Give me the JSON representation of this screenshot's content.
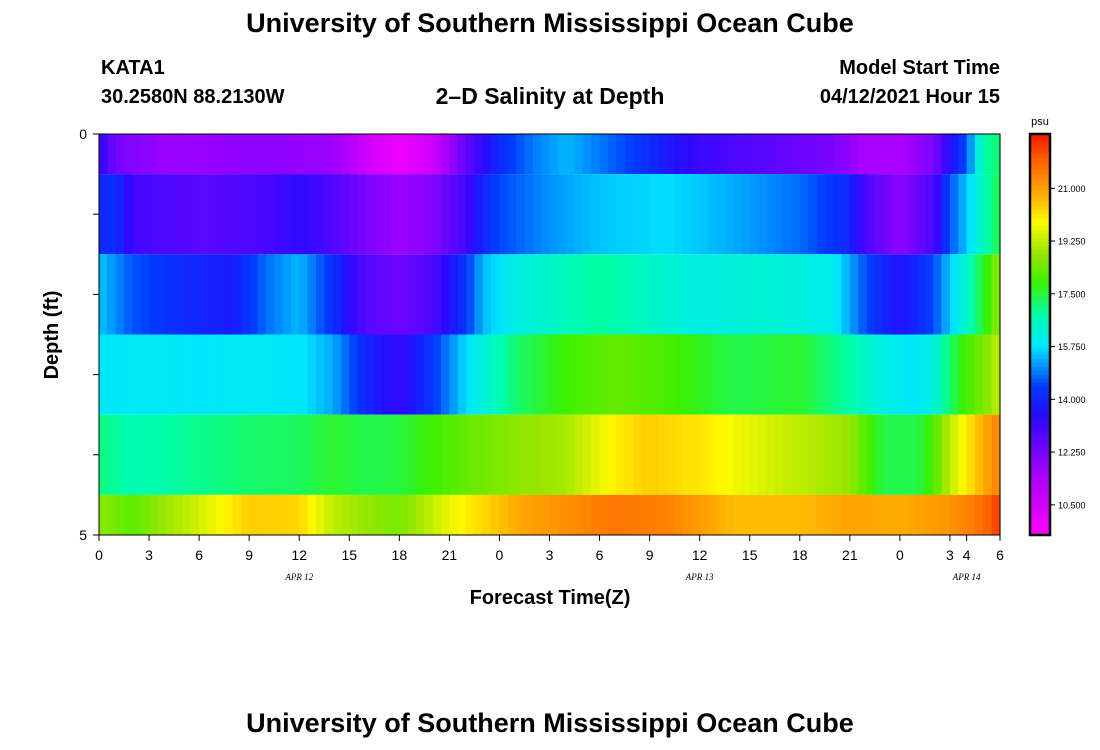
{
  "header": {
    "title": "University of Southern Mississippi Ocean Cube",
    "station": "KATA1",
    "coords": "30.2580N  88.2130W",
    "plot_title": "2–D Salinity at Depth",
    "model_label": "Model Start Time",
    "model_time": "04/12/2021 Hour 15"
  },
  "footer": {
    "title": "University of Southern Mississippi Ocean Cube"
  },
  "chart_data": {
    "type": "heatmap",
    "title": "2–D Salinity at Depth",
    "xlabel": "Forecast Time(Z)",
    "ylabel": "Depth (ft)",
    "x_tick_labels": [
      "0",
      "3",
      "6",
      "9",
      "12",
      "15",
      "18",
      "21",
      "0",
      "3",
      "6",
      "9",
      "12",
      "15",
      "18",
      "21",
      "0",
      "3",
      "4",
      "6"
    ],
    "x_tick_hours": [
      0,
      3,
      6,
      9,
      12,
      15,
      18,
      21,
      24,
      27,
      30,
      33,
      36,
      39,
      42,
      45,
      48,
      51,
      52,
      54
    ],
    "xlim": [
      0,
      54
    ],
    "date_labels": [
      {
        "text": "APR  12",
        "hour": 12
      },
      {
        "text": "APR  13",
        "hour": 36
      },
      {
        "text": "APR  14",
        "hour": 52
      }
    ],
    "y_tick_labels": [
      "0",
      "5"
    ],
    "ylim": [
      0,
      5
    ],
    "colorbar": {
      "unit": "psu",
      "ticks": [
        "21.000",
        "19.250",
        "17.500",
        "15.750",
        "14.000",
        "12.250",
        "10.500"
      ],
      "tick_values": [
        21.0,
        19.25,
        17.5,
        15.75,
        14.0,
        12.25,
        10.5
      ],
      "range": [
        9.5,
        22.8
      ]
    },
    "depth_bands": [
      {
        "from": 0,
        "to": 0.5,
        "keys": [
          [
            0,
            13.5
          ],
          [
            1,
            12.3
          ],
          [
            4,
            11.7
          ],
          [
            10,
            11.9
          ],
          [
            14,
            11.7
          ],
          [
            16,
            10.6
          ],
          [
            18,
            9.9
          ],
          [
            20,
            10.6
          ],
          [
            22,
            12.6
          ],
          [
            24,
            14.1
          ],
          [
            26,
            14.9
          ],
          [
            28,
            15.4
          ],
          [
            30,
            14.9
          ],
          [
            32,
            14.4
          ],
          [
            36,
            13.2
          ],
          [
            40,
            12.7
          ],
          [
            44,
            12.2
          ],
          [
            46,
            11.4
          ],
          [
            48,
            11.4
          ],
          [
            50,
            12.2
          ],
          [
            51,
            13.5
          ],
          [
            52,
            14.6
          ],
          [
            53,
            16.8
          ],
          [
            54,
            17.2
          ]
        ]
      },
      {
        "from": 0.5,
        "to": 1.5,
        "keys": [
          [
            0,
            14.0
          ],
          [
            1,
            14.2
          ],
          [
            2,
            13.1
          ],
          [
            6,
            12.7
          ],
          [
            10,
            13.0
          ],
          [
            12,
            13.4
          ],
          [
            14,
            12.9
          ],
          [
            16,
            12.2
          ],
          [
            18,
            11.7
          ],
          [
            20,
            12.1
          ],
          [
            22,
            13.1
          ],
          [
            23,
            14.0
          ],
          [
            24,
            14.5
          ],
          [
            27,
            15.1
          ],
          [
            30,
            15.5
          ],
          [
            34,
            15.7
          ],
          [
            38,
            15.3
          ],
          [
            42,
            14.8
          ],
          [
            45,
            14.0
          ],
          [
            46,
            12.9
          ],
          [
            48,
            11.9
          ],
          [
            50,
            12.9
          ],
          [
            51,
            14.6
          ],
          [
            52,
            15.5
          ],
          [
            53,
            16.6
          ],
          [
            54,
            17.5
          ]
        ]
      },
      {
        "from": 1.5,
        "to": 2.5,
        "keys": [
          [
            0,
            15.5
          ],
          [
            2,
            14.6
          ],
          [
            5,
            14.1
          ],
          [
            8,
            13.8
          ],
          [
            10,
            14.8
          ],
          [
            12,
            15.4
          ],
          [
            14,
            14.2
          ],
          [
            16,
            12.8
          ],
          [
            18,
            12.4
          ],
          [
            20,
            12.9
          ],
          [
            22,
            14.3
          ],
          [
            23,
            15.4
          ],
          [
            25,
            16.1
          ],
          [
            28,
            16.6
          ],
          [
            30,
            16.9
          ],
          [
            32,
            16.6
          ],
          [
            36,
            16.1
          ],
          [
            40,
            16.3
          ],
          [
            44,
            16.0
          ],
          [
            46,
            14.5
          ],
          [
            48,
            13.6
          ],
          [
            50,
            14.5
          ],
          [
            51,
            15.5
          ],
          [
            52,
            16.4
          ],
          [
            53,
            17.6
          ],
          [
            54,
            18.8
          ]
        ]
      },
      {
        "from": 2.5,
        "to": 3.5,
        "keys": [
          [
            0,
            15.8
          ],
          [
            3,
            15.9
          ],
          [
            6,
            15.8
          ],
          [
            9,
            15.9
          ],
          [
            12,
            15.8
          ],
          [
            14,
            15.3
          ],
          [
            16,
            14.0
          ],
          [
            18,
            13.3
          ],
          [
            20,
            14.3
          ],
          [
            22,
            15.7
          ],
          [
            25,
            17.2
          ],
          [
            28,
            17.9
          ],
          [
            31,
            18.3
          ],
          [
            34,
            18.0
          ],
          [
            38,
            17.4
          ],
          [
            42,
            17.6
          ],
          [
            45,
            16.8
          ],
          [
            47,
            16.1
          ],
          [
            49,
            15.8
          ],
          [
            50,
            16.2
          ],
          [
            51,
            17.2
          ],
          [
            52,
            18.0
          ],
          [
            53,
            18.5
          ],
          [
            54,
            19.3
          ]
        ]
      },
      {
        "from": 3.5,
        "to": 4.5,
        "keys": [
          [
            0,
            17.1
          ],
          [
            2,
            16.7
          ],
          [
            5,
            16.9
          ],
          [
            9,
            17.2
          ],
          [
            12,
            17.3
          ],
          [
            14,
            17.6
          ],
          [
            16,
            17.4
          ],
          [
            18,
            17.5
          ],
          [
            20,
            17.9
          ],
          [
            22,
            18.3
          ],
          [
            25,
            18.7
          ],
          [
            28,
            19.0
          ],
          [
            31,
            20.0
          ],
          [
            33,
            20.4
          ],
          [
            36,
            20.1
          ],
          [
            39,
            19.6
          ],
          [
            42,
            19.2
          ],
          [
            45,
            18.8
          ],
          [
            47,
            17.4
          ],
          [
            49,
            17.4
          ],
          [
            50,
            18.0
          ],
          [
            51,
            19.2
          ],
          [
            52,
            20.0
          ],
          [
            53,
            20.8
          ],
          [
            54,
            21.4
          ]
        ]
      },
      {
        "from": 4.5,
        "to": 5.0,
        "keys": [
          [
            0,
            18.7
          ],
          [
            2,
            18.2
          ],
          [
            4,
            18.9
          ],
          [
            6,
            19.4
          ],
          [
            9,
            20.4
          ],
          [
            12,
            20.3
          ],
          [
            14,
            19.2
          ],
          [
            16,
            18.8
          ],
          [
            18,
            18.5
          ],
          [
            20,
            19.3
          ],
          [
            22,
            20.0
          ],
          [
            25,
            20.8
          ],
          [
            28,
            21.2
          ],
          [
            31,
            21.6
          ],
          [
            34,
            21.4
          ],
          [
            38,
            20.6
          ],
          [
            42,
            20.6
          ],
          [
            45,
            20.9
          ],
          [
            48,
            20.8
          ],
          [
            51,
            21.1
          ],
          [
            53,
            21.7
          ],
          [
            54,
            22.4
          ]
        ]
      }
    ]
  }
}
